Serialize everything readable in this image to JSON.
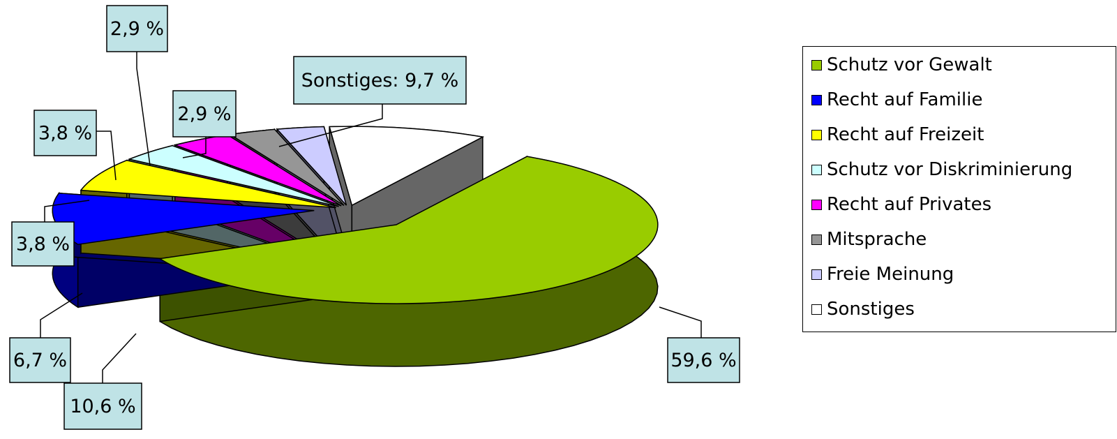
{
  "chart_data": {
    "type": "pie",
    "categories": [
      "Schutz vor Gewalt",
      "Recht auf Familie",
      "Recht auf Freizeit",
      "Schutz vor Diskriminierung",
      "Recht auf Privates",
      "Mitsprache",
      "Freie Meinung",
      "Sonstiges"
    ],
    "values": [
      59.6,
      10.6,
      6.7,
      3.8,
      3.8,
      2.9,
      2.9,
      9.7
    ],
    "data_labels": [
      "59,6 %",
      "10,6 %",
      "6,7 %",
      "3,8 %",
      "3,8 %",
      "2,9 %",
      "2,9 %",
      "Sonstiges: 9,7 %"
    ],
    "colors": [
      "#99cc00",
      "#0000ff",
      "#ffff00",
      "#ccffff",
      "#ff00ff",
      "#969696",
      "#ccccff",
      "#ffffff"
    ],
    "style": "3d-exploded",
    "legend_position": "right"
  }
}
